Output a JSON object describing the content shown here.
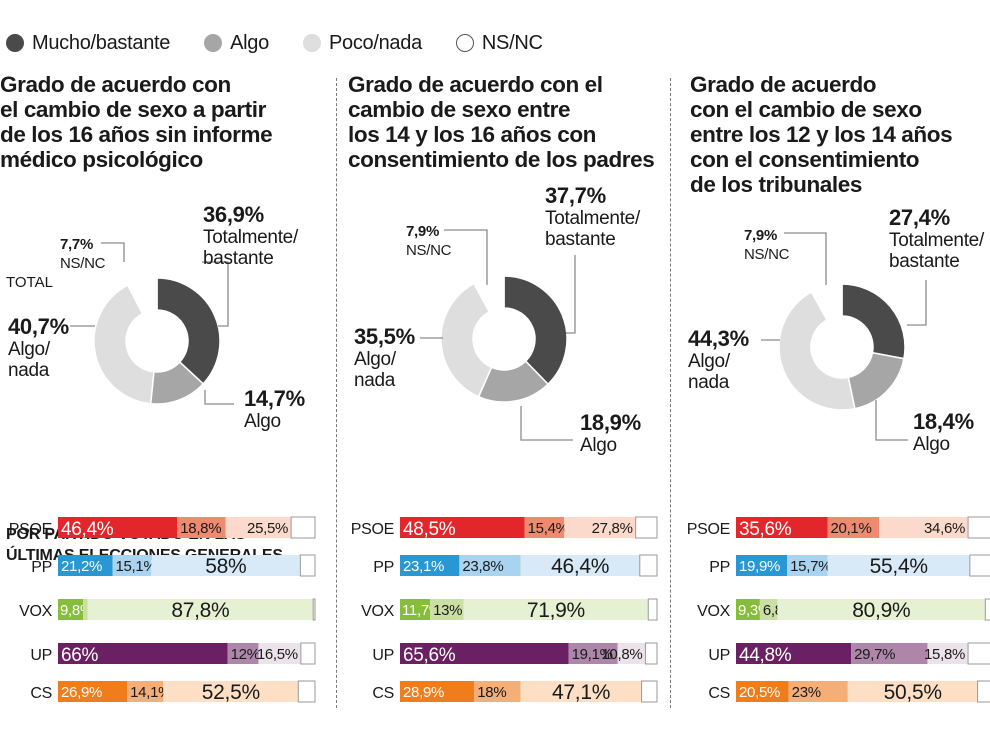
{
  "legend": [
    {
      "label": "Mucho/bastante",
      "color": "#4a4a4a",
      "border": "#4a4a4a"
    },
    {
      "label": "Algo",
      "color": "#a6a6a6",
      "border": "#a6a6a6"
    },
    {
      "label": "Poco/nada",
      "color": "#dedede",
      "border": "#dedede"
    },
    {
      "label": "NS/NC",
      "color": "#ffffff",
      "border": "#555555"
    }
  ],
  "total_label": "TOTAL",
  "subheading": [
    "POR PARTIDO VOTADO EN LAS",
    "ÚLTIMAS ELECCIONES GENERALES"
  ],
  "colors": {
    "donut": [
      "#4a4a4a",
      "#a6a6a6",
      "#dedede",
      "#ffffff"
    ],
    "party_strong": [
      "#e2262b",
      "#2798d3",
      "#86bd3b",
      "#6a2062",
      "#ef7d1b"
    ],
    "party_mid": [
      "#ef8a71",
      "#a9d3ee",
      "#c9dfa4",
      "#ad86a9",
      "#f4ae78"
    ],
    "party_light": [
      "#fbd9cb",
      "#d8eaf7",
      "#e6f0d2",
      "#ece3ea",
      "#fddfc5"
    ]
  },
  "chart_data": [
    {
      "type": "pie",
      "title": [
        "Grado de acuerdo con",
        "el cambio de sexo a partir",
        "de los 16 años sin informe",
        "médico psicológico"
      ],
      "slices": [
        {
          "name": "Totalmente/bastante",
          "label": [
            "Totalmente/",
            "bastante"
          ],
          "value": 36.9,
          "text": "36,9%"
        },
        {
          "name": "Algo",
          "label": [
            "Algo"
          ],
          "value": 14.7,
          "text": "14,7%"
        },
        {
          "name": "Algo/nada",
          "label": [
            "Algo/",
            "nada"
          ],
          "value": 40.7,
          "text": "40,7%"
        },
        {
          "name": "NS/NC",
          "label": [
            "NS/NC"
          ],
          "value": 7.7,
          "text": "7,7%"
        }
      ],
      "bars": {
        "type": "bar",
        "stacked": true,
        "categories": [
          "PSOE",
          "PP",
          "VOX",
          "UP",
          "CS"
        ],
        "series": [
          {
            "name": "Mucho/bastante",
            "values": [
              46.4,
              21.2,
              9.8,
              66,
              26.9
            ],
            "labels": [
              "46,4%",
              "21,2%",
              "9,8%",
              "66%",
              "26,9%"
            ]
          },
          {
            "name": "Algo",
            "values": [
              18.8,
              15.1,
              1.7,
              12,
              14.1
            ],
            "labels": [
              "18,8%",
              "15,1%",
              "1,7%",
              "12%",
              "14,1%"
            ]
          },
          {
            "name": "Poco/nada",
            "values": [
              25.5,
              58,
              87.8,
              16.5,
              52.5
            ],
            "labels": [
              "25,5%",
              "58%",
              "87,8%",
              "16,5%",
              "52,5%"
            ]
          },
          {
            "name": "NS/NC",
            "values": [
              9.3,
              5.7,
              0.7,
              5.5,
              6.5
            ]
          }
        ]
      }
    },
    {
      "type": "pie",
      "title": [
        "Grado de acuerdo con el",
        "cambio de sexo entre",
        "los 14 y los 16 años con",
        "consentimiento de los padres"
      ],
      "slices": [
        {
          "name": "Totalmente/bastante",
          "label": [
            "Totalmente/",
            "bastante"
          ],
          "value": 37.7,
          "text": "37,7%"
        },
        {
          "name": "Algo",
          "label": [
            "Algo"
          ],
          "value": 18.9,
          "text": "18,9%"
        },
        {
          "name": "Algo/nada",
          "label": [
            "Algo/",
            "nada"
          ],
          "value": 35.5,
          "text": "35,5%"
        },
        {
          "name": "NS/NC",
          "label": [
            "NS/NC"
          ],
          "value": 7.9,
          "text": "7,9%"
        }
      ],
      "bars": {
        "type": "bar",
        "stacked": true,
        "categories": [
          "PSOE",
          "PP",
          "VOX",
          "UP",
          "CS"
        ],
        "series": [
          {
            "name": "Mucho/bastante",
            "values": [
              48.5,
              23.1,
              11.7,
              65.6,
              28.9
            ],
            "labels": [
              "48,5%",
              "23,1%",
              "11,7%",
              "65,6%",
              "28,9%"
            ]
          },
          {
            "name": "Algo",
            "values": [
              15.4,
              23.8,
              13,
              19.1,
              18
            ],
            "labels": [
              "15,4%",
              "23,8%",
              "13%",
              "19,1%",
              "18%"
            ]
          },
          {
            "name": "Poco/nada",
            "values": [
              27.8,
              46.4,
              71.9,
              10.8,
              47.1
            ],
            "labels": [
              "27,8%",
              "46,4%",
              "71,9%",
              "10,8%",
              "47,1%"
            ]
          },
          {
            "name": "NS/NC",
            "values": [
              8.3,
              6.7,
              3.4,
              4.5,
              6
            ]
          }
        ]
      }
    },
    {
      "type": "pie",
      "title": [
        "Grado de acuerdo",
        "con el cambio de sexo",
        "entre los 12 y los 14 años",
        "con el consentimiento",
        "de los tribunales"
      ],
      "slices": [
        {
          "name": "Totalmente/bastante",
          "label": [
            "Totalmente/",
            "bastante"
          ],
          "value": 27.4,
          "text": "27,4%"
        },
        {
          "name": "Algo",
          "label": [
            "Algo"
          ],
          "value": 18.4,
          "text": "18,4%"
        },
        {
          "name": "Algo/nada",
          "label": [
            "Algo/",
            "nada"
          ],
          "value": 44.3,
          "text": "44,3%"
        },
        {
          "name": "NS/NC",
          "label": [
            "NS/NC"
          ],
          "value": 7.9,
          "text": "7,9%"
        }
      ],
      "bars": {
        "type": "bar",
        "stacked": true,
        "categories": [
          "PSOE",
          "PP",
          "VOX",
          "UP",
          "CS"
        ],
        "series": [
          {
            "name": "Mucho/bastante",
            "values": [
              35.6,
              19.9,
              9.3,
              44.8,
              20.5
            ],
            "labels": [
              "35,6%",
              "19,9%",
              "9,3%",
              "44,8%",
              "20,5%"
            ]
          },
          {
            "name": "Algo",
            "values": [
              20.1,
              15.7,
              6.8,
              29.7,
              23
            ],
            "labels": [
              "20,1%",
              "15,7%",
              "6,8%",
              "29,7%",
              "23%"
            ]
          },
          {
            "name": "Poco/nada",
            "values": [
              34.6,
              55.4,
              80.9,
              15.8,
              50.5
            ],
            "labels": [
              "34,6%",
              "55,4%",
              "80,9%",
              "15,8%",
              "50,5%"
            ]
          },
          {
            "name": "NS/NC",
            "values": [
              9.7,
              9,
              3,
              9.7,
              6
            ]
          }
        ]
      }
    }
  ]
}
